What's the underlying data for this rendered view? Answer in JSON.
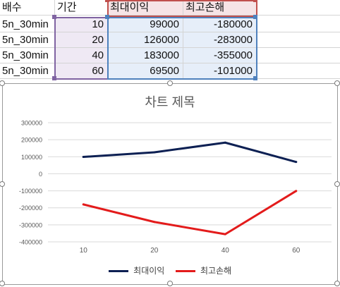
{
  "sheet": {
    "header": [
      "배수",
      "기간",
      "최대이익",
      "최고손해"
    ],
    "rows": [
      [
        "5n_30min",
        "10",
        "99000",
        "-180000"
      ],
      [
        "5n_30min",
        "20",
        "126000",
        "-283000"
      ],
      [
        "5n_30min",
        "40",
        "183000",
        "-355000"
      ],
      [
        "5n_30min",
        "60",
        "69500",
        "-101000"
      ]
    ]
  },
  "chart_data": {
    "type": "line",
    "title": "차트 제목",
    "categories": [
      "10",
      "20",
      "40",
      "60"
    ],
    "series": [
      {
        "name": "최대이익",
        "values": [
          99000,
          126000,
          183000,
          69500
        ],
        "color": "#0d2053"
      },
      {
        "name": "최고손해",
        "values": [
          -180000,
          -283000,
          -355000,
          -101000
        ],
        "color": "#e31b1b"
      }
    ],
    "ylim": [
      -400000,
      300000
    ],
    "yticks": [
      "300000",
      "200000",
      "100000",
      "0",
      "-100000",
      "-200000",
      "-300000",
      "-400000"
    ],
    "grid": true,
    "legend_position": "bottom",
    "xlabel": "",
    "ylabel": ""
  }
}
